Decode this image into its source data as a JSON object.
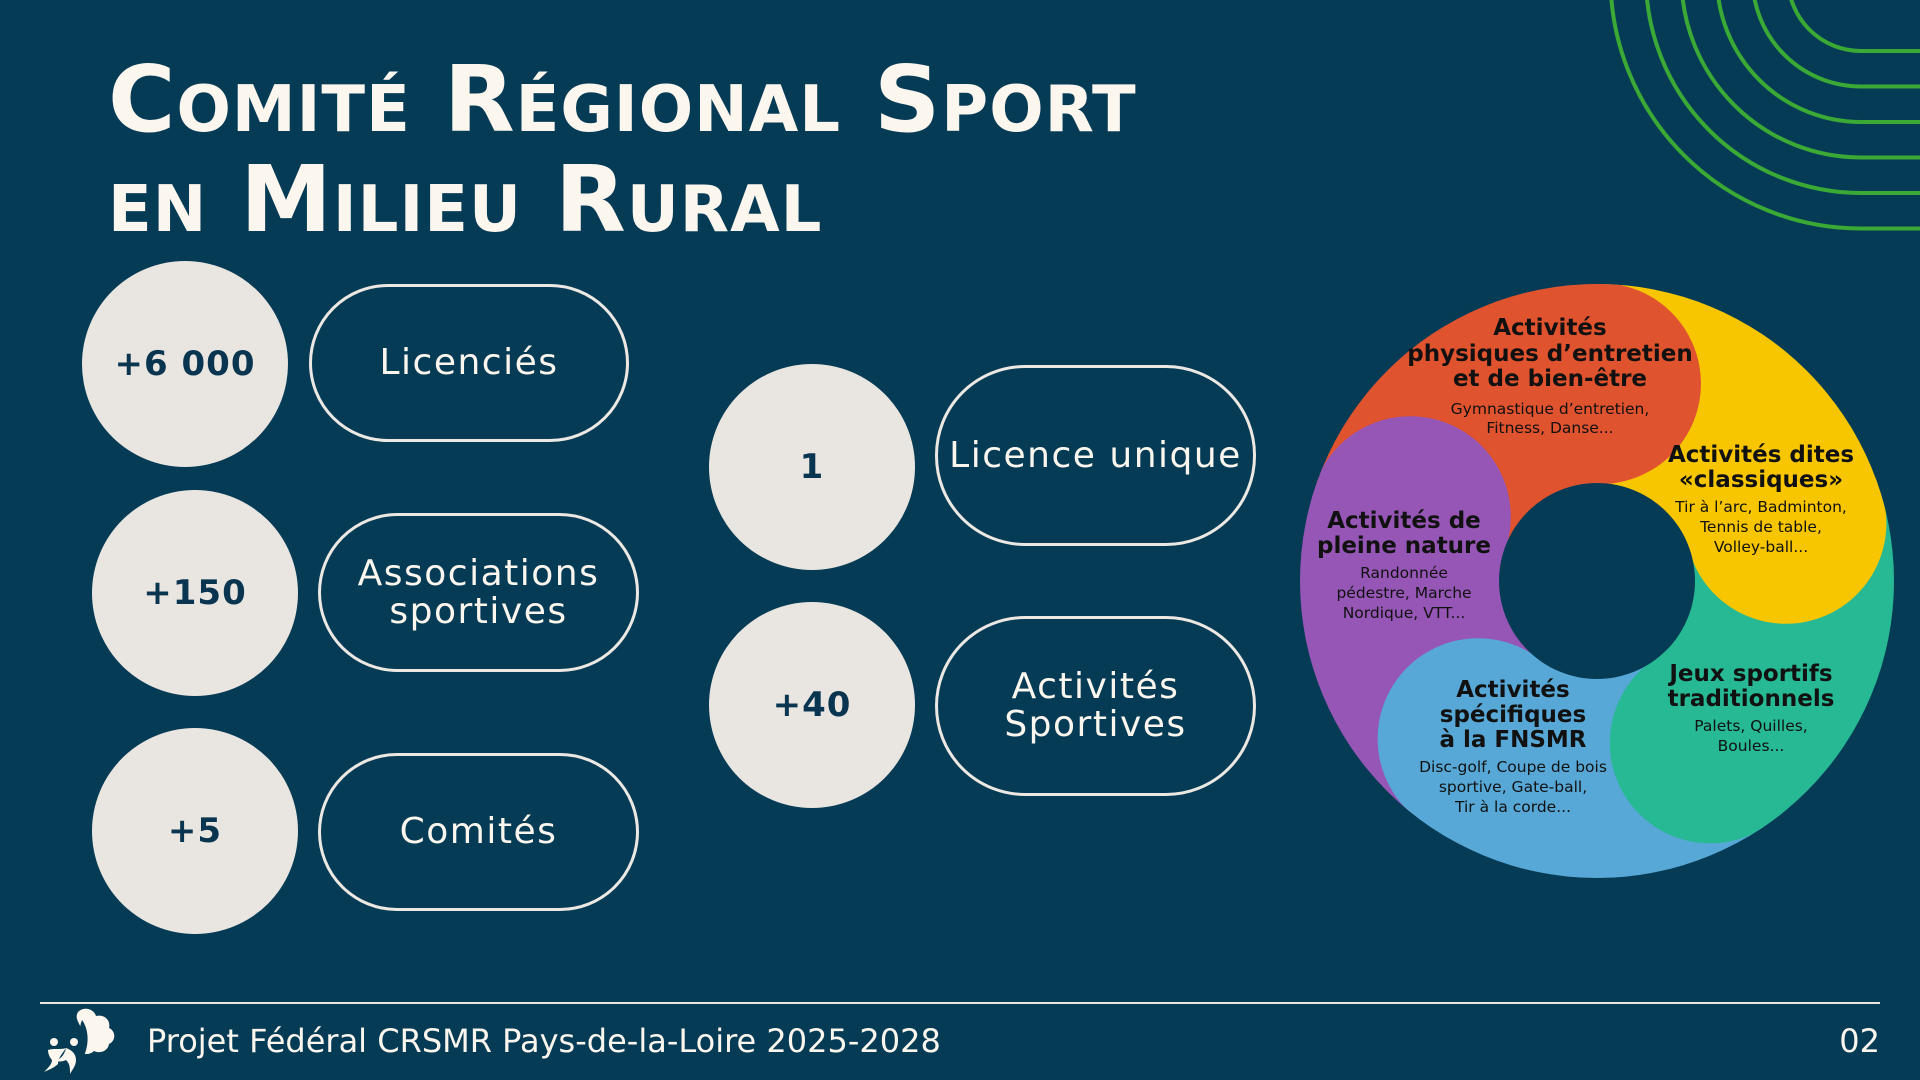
{
  "title": {
    "line1": "Comité Régional Sport",
    "line2": "en Milieu Rural"
  },
  "stats": [
    {
      "value": "+6 000",
      "label": "Licenciés"
    },
    {
      "value": "+150",
      "label": "Associations sportives"
    },
    {
      "value": "+5",
      "label": "Comités"
    },
    {
      "value": "1",
      "label": "Licence unique"
    },
    {
      "value": "+40",
      "label": "Activités Sportives"
    }
  ],
  "activities": [
    {
      "title": [
        "Activités",
        "physiques d’entretien",
        "et de bien-être"
      ],
      "examples": [
        "Gymnastique d’entretien,",
        "Fitness, Danse..."
      ],
      "color": "#e0532f"
    },
    {
      "title": [
        "Activités dites",
        "«classiques»"
      ],
      "examples": [
        "Tir à l’arc, Badminton,",
        "Tennis de table,",
        "Volley-ball..."
      ],
      "color": "#f7c600"
    },
    {
      "title": [
        "Jeux sportifs",
        "traditionnels"
      ],
      "examples": [
        "Palets, Quilles,",
        "Boules..."
      ],
      "color": "#27b894"
    },
    {
      "title": [
        "Activités",
        "spécifiques",
        "à la FNSMR"
      ],
      "examples": [
        "Disc-golf, Coupe de bois",
        "sportive, Gate-ball,",
        "Tir à la corde..."
      ],
      "color": "#57a8d6"
    },
    {
      "title": [
        "Activités de",
        "pleine nature"
      ],
      "examples": [
        "Randonnée",
        "pédestre, Marche",
        "Nordique, VTT..."
      ],
      "color": "#9556b5"
    }
  ],
  "footer": {
    "text": "Projet Fédéral CRSMR Pays-de-la-Loire 2025-2028",
    "page": "02"
  },
  "colors": {
    "background": "#063b56",
    "accent_lines": "#3aa935",
    "circle": "#e9e5e0"
  }
}
